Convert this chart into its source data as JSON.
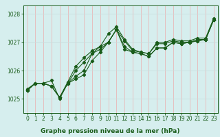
{
  "title": "Graphe pression niveau de la mer (hPa)",
  "xlabel": "Graphe pression niveau de la mer (hPa)",
  "ylim": [
    1024.5,
    1028.3
  ],
  "xlim": [
    -0.5,
    23.5
  ],
  "yticks": [
    1025,
    1026,
    1027,
    1028
  ],
  "xticks": [
    0,
    1,
    2,
    3,
    4,
    5,
    6,
    7,
    8,
    9,
    10,
    11,
    12,
    13,
    14,
    15,
    16,
    17,
    18,
    19,
    20,
    21,
    22,
    23
  ],
  "bg_color": "#d6eeee",
  "vgrid_color": "#e8b8b8",
  "hgrid_color": "#c8dede",
  "line_color": "#1a5c1a",
  "series": [
    [
      1025.3,
      1025.55,
      1025.55,
      1025.65,
      1025.0,
      1025.55,
      1025.8,
      1026.0,
      1026.6,
      1026.85,
      1027.0,
      1027.45,
      1027.05,
      1026.7,
      1026.65,
      1026.6,
      1026.95,
      1026.95,
      1027.05,
      1027.0,
      1027.0,
      1027.1,
      1027.1,
      1027.8
    ],
    [
      1025.3,
      1025.55,
      1025.55,
      1025.45,
      1025.05,
      1025.55,
      1025.7,
      1025.85,
      1026.35,
      1026.65,
      1027.0,
      1027.45,
      1026.85,
      1026.65,
      1026.6,
      1026.5,
      1026.8,
      1026.8,
      1027.0,
      1026.95,
      1027.0,
      1027.05,
      1027.1,
      1027.8
    ],
    [
      1025.3,
      1025.55,
      1025.55,
      1025.45,
      1025.05,
      1025.55,
      1026.0,
      1026.3,
      1026.6,
      1026.75,
      1027.0,
      1027.45,
      1026.75,
      1026.65,
      1026.6,
      1026.5,
      1026.8,
      1026.8,
      1027.0,
      1026.95,
      1027.0,
      1027.05,
      1027.1,
      1027.8
    ],
    [
      1025.35,
      1025.55,
      1025.55,
      1025.45,
      1025.05,
      1025.6,
      1026.15,
      1026.45,
      1026.7,
      1026.85,
      1027.3,
      1027.55,
      1027.1,
      1026.75,
      1026.65,
      1026.6,
      1027.0,
      1027.0,
      1027.1,
      1027.05,
      1027.05,
      1027.15,
      1027.15,
      1027.85
    ]
  ],
  "marker": "D",
  "marker_size": 2.2,
  "line_width": 0.8,
  "tick_fontsize": 5.5,
  "xlabel_fontsize": 6.5
}
